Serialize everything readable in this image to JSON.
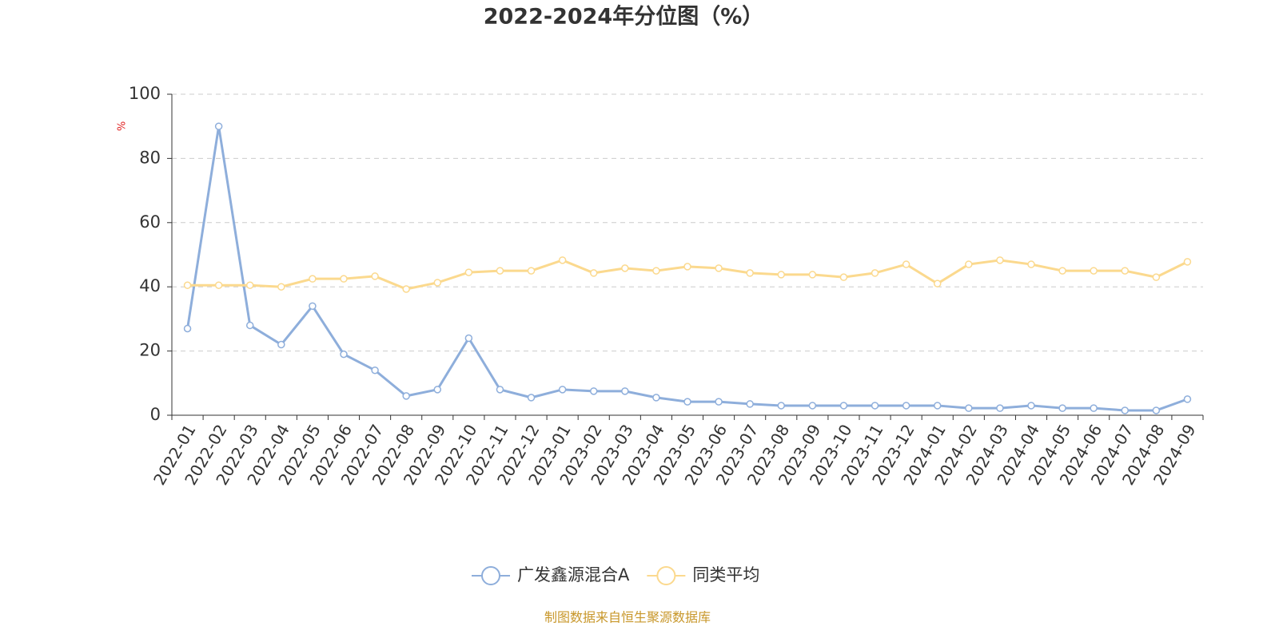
{
  "chart_data": {
    "type": "line",
    "title": "2022-2024年分位图（%）",
    "y_label": "%",
    "categories": [
      "2022-01",
      "2022-02",
      "2022-03",
      "2022-04",
      "2022-05",
      "2022-06",
      "2022-07",
      "2022-08",
      "2022-09",
      "2022-10",
      "2022-11",
      "2022-12",
      "2023-01",
      "2023-02",
      "2023-03",
      "2023-04",
      "2023-05",
      "2023-06",
      "2023-07",
      "2023-08",
      "2023-09",
      "2023-10",
      "2023-11",
      "2023-12",
      "2024-01",
      "2024-02",
      "2024-03",
      "2024-04",
      "2024-05",
      "2024-06",
      "2024-07",
      "2024-08",
      "2024-09"
    ],
    "series": [
      {
        "name": "广发鑫源混合A",
        "color": "#8eaedb",
        "values": [
          27,
          90,
          28,
          22,
          34,
          19,
          14,
          6,
          8,
          24,
          8,
          5.5,
          8,
          7.5,
          7.5,
          5.5,
          4.2,
          4.2,
          3.5,
          3,
          3,
          3,
          3,
          3,
          3,
          2.2,
          2.2,
          3,
          2.2,
          2.2,
          1.5,
          1.5,
          5
        ]
      },
      {
        "name": "同类平均",
        "color": "#fbd98e",
        "values": [
          40.5,
          40.5,
          40.5,
          40,
          42.5,
          42.5,
          43.3,
          39.3,
          41.3,
          44.5,
          45,
          45,
          48.3,
          44.3,
          45.8,
          45,
          46.3,
          45.8,
          44.3,
          43.8,
          43.8,
          43,
          44.3,
          47,
          41,
          47,
          48.3,
          47,
          45,
          45,
          45,
          43,
          47.8
        ]
      }
    ],
    "ylim": [
      0,
      100
    ],
    "yticks": [
      0,
      20,
      40,
      60,
      80,
      100
    ],
    "grid": true,
    "legend": "bottom",
    "source": "制图数据来自恒生聚源数据库"
  }
}
